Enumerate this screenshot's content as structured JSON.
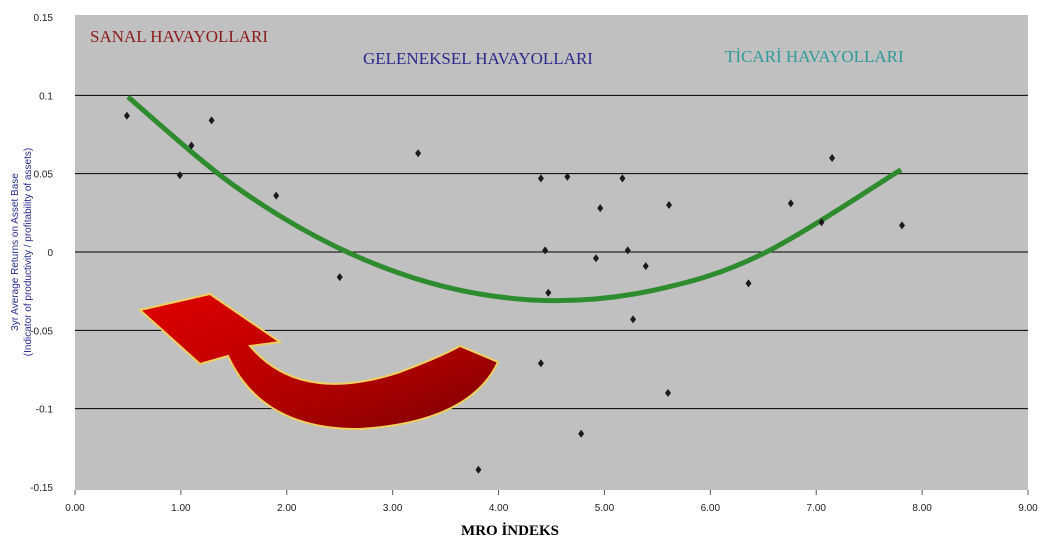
{
  "chart_data": {
    "type": "scatter",
    "annotations": [
      {
        "text": "SANAL HAVAYOLLARI",
        "color": "#8b1a1a"
      },
      {
        "text": "GELENEKSEL HAVAYOLLARI",
        "color": "#2a2a8c"
      },
      {
        "text": "TİCARİ HAVAYOLLARI",
        "color": "#2e9a9a"
      }
    ],
    "x_label": "MRO İNDEKS",
    "y_label": [
      "3yr Average Returns on Asset Base",
      "(Indicator of productivity / profitability of assets)"
    ],
    "xlim": [
      0,
      9
    ],
    "ylim": [
      -0.15,
      0.15
    ],
    "xticks": [
      {
        "value": 0,
        "label": "0.00"
      },
      {
        "value": 1,
        "label": "1.00"
      },
      {
        "value": 2,
        "label": "2.00"
      },
      {
        "value": 3,
        "label": "3.00"
      },
      {
        "value": 4,
        "label": "4.00"
      },
      {
        "value": 5,
        "label": "5.00"
      },
      {
        "value": 6,
        "label": "6.00"
      },
      {
        "value": 7,
        "label": "7.00"
      },
      {
        "value": 8,
        "label": "8.00"
      },
      {
        "value": 9,
        "label": "9.00"
      }
    ],
    "yticks": [
      0.15,
      0.1,
      0.05,
      0,
      -0.05,
      -0.1,
      -0.15
    ],
    "grid": true,
    "series": [
      {
        "color": "#1a1a1a",
        "x": [
          0.49,
          0.99,
          1.1,
          1.29,
          1.9,
          2.5,
          3.24,
          3.81,
          4.4,
          4.4,
          4.44,
          4.47,
          4.65,
          4.78,
          4.92,
          4.96,
          5.17,
          5.22,
          5.27,
          5.39,
          5.61,
          5.6,
          6.36,
          6.76,
          7.05,
          7.15,
          7.81
        ],
        "values": [
          0.087,
          0.049,
          0.068,
          0.084,
          0.036,
          -0.016,
          0.063,
          -0.139,
          0.047,
          -0.071,
          0.001,
          -0.026,
          0.048,
          -0.116,
          -0.004,
          0.028,
          0.047,
          0.001,
          -0.043,
          -0.009,
          0.03,
          -0.09,
          -0.02,
          0.031,
          0.019,
          0.06,
          0.017
        ]
      }
    ],
    "trendline": {
      "color": "#2e8b2e",
      "x": [
        0.5,
        1.5,
        2.5,
        3.5,
        4.5,
        5.5,
        6.5,
        7.8
      ],
      "values": [
        0.099,
        0.0425,
        0.0022,
        -0.0223,
        -0.031,
        -0.0239,
        -0.001,
        0.0525
      ]
    }
  }
}
